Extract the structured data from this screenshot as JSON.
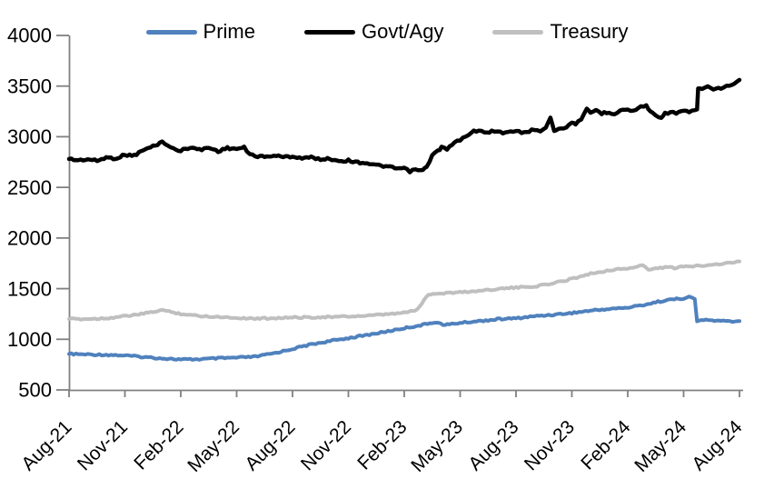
{
  "chart_data": {
    "type": "line",
    "title": "",
    "grid": false,
    "axis_color": "#808080",
    "text_color": "#000000",
    "legend": {
      "position": "top",
      "entries": [
        "Prime",
        "Govt/Agy",
        "Treasury"
      ]
    },
    "x_axis": {
      "unit": "month-year",
      "months_span": 36,
      "tick_labels": [
        "Aug-21",
        "Nov-21",
        "Feb-22",
        "May-22",
        "Aug-22",
        "Nov-22",
        "Feb-23",
        "May-23",
        "Aug-23",
        "Nov-23",
        "Feb-24",
        "May-24",
        "Aug-24"
      ]
    },
    "y_axis": {
      "min": 500,
      "max": 4000,
      "tick_step": 500,
      "tick_labels": [
        "500",
        "1000",
        "1500",
        "2000",
        "2500",
        "3000",
        "3500",
        "4000"
      ]
    },
    "series": [
      {
        "name": "Prime",
        "id": "prime",
        "color": "#4F81BD",
        "points": [
          [
            0,
            855
          ],
          [
            1,
            850
          ],
          [
            2,
            847
          ],
          [
            3,
            840
          ],
          [
            4,
            825
          ],
          [
            5,
            812
          ],
          [
            6,
            800
          ],
          [
            7,
            803
          ],
          [
            8,
            812
          ],
          [
            9,
            818
          ],
          [
            10,
            828
          ],
          [
            11,
            862
          ],
          [
            12,
            905
          ],
          [
            13,
            950
          ],
          [
            14,
            982
          ],
          [
            15,
            1012
          ],
          [
            16,
            1042
          ],
          [
            17,
            1075
          ],
          [
            18,
            1110
          ],
          [
            19,
            1142
          ],
          [
            19.6,
            1170
          ],
          [
            20.2,
            1142
          ],
          [
            21,
            1162
          ],
          [
            22,
            1180
          ],
          [
            23,
            1198
          ],
          [
            24,
            1207
          ],
          [
            25,
            1228
          ],
          [
            26,
            1243
          ],
          [
            27,
            1260
          ],
          [
            28,
            1283
          ],
          [
            29,
            1300
          ],
          [
            30,
            1312
          ],
          [
            31,
            1345
          ],
          [
            32,
            1385
          ],
          [
            33,
            1405
          ],
          [
            33.3,
            1415
          ],
          [
            33.6,
            1400
          ],
          [
            33.72,
            1180
          ],
          [
            34.2,
            1192
          ],
          [
            35,
            1180
          ],
          [
            36,
            1175
          ]
        ]
      },
      {
        "name": "Govt/Agy",
        "id": "govt-agy",
        "color": "#000000",
        "points": [
          [
            0,
            2780
          ],
          [
            0.5,
            2768
          ],
          [
            1,
            2778
          ],
          [
            1.5,
            2762
          ],
          [
            2,
            2795
          ],
          [
            2.5,
            2785
          ],
          [
            3,
            2822
          ],
          [
            3.5,
            2815
          ],
          [
            4,
            2868
          ],
          [
            4.5,
            2905
          ],
          [
            5,
            2948
          ],
          [
            5.3,
            2920
          ],
          [
            5.6,
            2878
          ],
          [
            6,
            2862
          ],
          [
            6.5,
            2898
          ],
          [
            7,
            2870
          ],
          [
            7.5,
            2892
          ],
          [
            8,
            2858
          ],
          [
            8.5,
            2888
          ],
          [
            9,
            2880
          ],
          [
            9.4,
            2892
          ],
          [
            9.7,
            2825
          ],
          [
            10,
            2812
          ],
          [
            10.5,
            2800
          ],
          [
            11,
            2815
          ],
          [
            11.5,
            2800
          ],
          [
            12,
            2805
          ],
          [
            12.5,
            2790
          ],
          [
            13,
            2795
          ],
          [
            13.5,
            2778
          ],
          [
            14,
            2782
          ],
          [
            14.5,
            2762
          ],
          [
            15,
            2765
          ],
          [
            15.5,
            2748
          ],
          [
            16,
            2740
          ],
          [
            16.5,
            2718
          ],
          [
            17,
            2708
          ],
          [
            17.5,
            2688
          ],
          [
            18,
            2685
          ],
          [
            18.3,
            2658
          ],
          [
            18.6,
            2672
          ],
          [
            19,
            2668
          ],
          [
            19.2,
            2700
          ],
          [
            19.5,
            2818
          ],
          [
            19.8,
            2858
          ],
          [
            20,
            2898
          ],
          [
            20.3,
            2872
          ],
          [
            20.7,
            2942
          ],
          [
            21,
            2968
          ],
          [
            21.3,
            3002
          ],
          [
            21.6,
            3048
          ],
          [
            22,
            3065
          ],
          [
            22.3,
            3035
          ],
          [
            22.7,
            3052
          ],
          [
            23,
            3062
          ],
          [
            23.3,
            3032
          ],
          [
            23.7,
            3048
          ],
          [
            24,
            3060
          ],
          [
            24.3,
            3042
          ],
          [
            24.7,
            3052
          ],
          [
            25,
            3072
          ],
          [
            25.3,
            3062
          ],
          [
            25.6,
            3095
          ],
          [
            25.85,
            3195
          ],
          [
            26.05,
            3055
          ],
          [
            26.4,
            3090
          ],
          [
            26.7,
            3082
          ],
          [
            27,
            3148
          ],
          [
            27.2,
            3130
          ],
          [
            27.5,
            3162
          ],
          [
            27.8,
            3268
          ],
          [
            28,
            3238
          ],
          [
            28.3,
            3262
          ],
          [
            28.6,
            3232
          ],
          [
            29,
            3242
          ],
          [
            29.3,
            3228
          ],
          [
            29.6,
            3262
          ],
          [
            30,
            3268
          ],
          [
            30.3,
            3252
          ],
          [
            30.7,
            3295
          ],
          [
            31,
            3312
          ],
          [
            31.2,
            3248
          ],
          [
            31.5,
            3212
          ],
          [
            31.8,
            3195
          ],
          [
            32,
            3228
          ],
          [
            32.3,
            3245
          ],
          [
            32.6,
            3232
          ],
          [
            33,
            3252
          ],
          [
            33.3,
            3242
          ],
          [
            33.6,
            3262
          ],
          [
            33.72,
            3268
          ],
          [
            33.78,
            3465
          ],
          [
            34,
            3482
          ],
          [
            34.3,
            3492
          ],
          [
            34.6,
            3470
          ],
          [
            35,
            3478
          ],
          [
            35.3,
            3498
          ],
          [
            35.6,
            3508
          ],
          [
            36,
            3552
          ]
        ]
      },
      {
        "name": "Treasury",
        "id": "treasury",
        "color": "#BFBFBF",
        "points": [
          [
            0,
            1200
          ],
          [
            1,
            1200
          ],
          [
            2,
            1208
          ],
          [
            3,
            1228
          ],
          [
            4,
            1252
          ],
          [
            5,
            1290
          ],
          [
            5.5,
            1268
          ],
          [
            6,
            1252
          ],
          [
            7,
            1230
          ],
          [
            8,
            1222
          ],
          [
            9,
            1212
          ],
          [
            10,
            1205
          ],
          [
            11,
            1210
          ],
          [
            12,
            1215
          ],
          [
            13,
            1218
          ],
          [
            14,
            1220
          ],
          [
            15,
            1225
          ],
          [
            16,
            1232
          ],
          [
            17,
            1245
          ],
          [
            18,
            1262
          ],
          [
            18.7,
            1292
          ],
          [
            19.3,
            1445
          ],
          [
            20,
            1455
          ],
          [
            21,
            1465
          ],
          [
            22,
            1478
          ],
          [
            23,
            1498
          ],
          [
            24,
            1510
          ],
          [
            25,
            1522
          ],
          [
            26,
            1552
          ],
          [
            27,
            1598
          ],
          [
            28,
            1648
          ],
          [
            29,
            1682
          ],
          [
            30,
            1700
          ],
          [
            30.5,
            1715
          ],
          [
            30.8,
            1735
          ],
          [
            31.1,
            1682
          ],
          [
            31.5,
            1702
          ],
          [
            32,
            1710
          ],
          [
            32.5,
            1705
          ],
          [
            33,
            1715
          ],
          [
            34,
            1730
          ],
          [
            35,
            1745
          ],
          [
            36,
            1765
          ]
        ]
      }
    ]
  }
}
